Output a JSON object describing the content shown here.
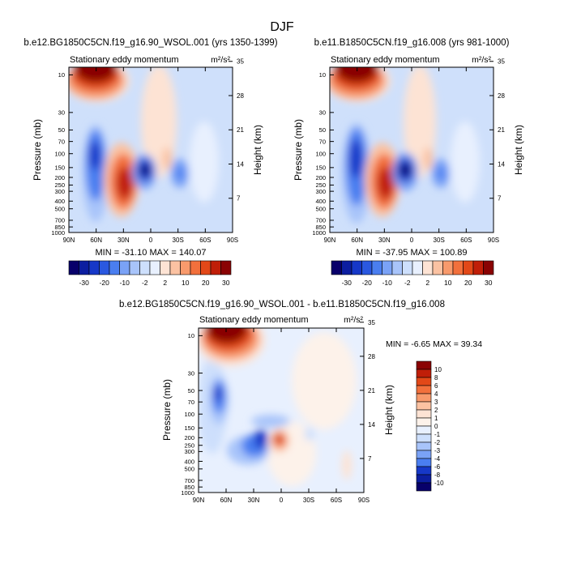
{
  "page_title": "DJF",
  "chart_data": [
    {
      "type": "heatmap",
      "id": "panel1",
      "title": "b.e12.BG1850C5CN.f19_g16.90_WSOL.001 (yrs 1350-1399)",
      "subtitle": "Stationary eddy momentum",
      "units": "m²/s²",
      "xlabel": "",
      "ylabel": "Pressure (mb)",
      "ylabel_right": "Height (km)",
      "x_ticks": [
        "90N",
        "60N",
        "30N",
        "0",
        "30S",
        "60S",
        "90S"
      ],
      "y_ticks": [
        "10",
        "30",
        "50",
        "70",
        "100",
        "150",
        "200",
        "250",
        "300",
        "400",
        "500",
        "700",
        "850",
        "1000"
      ],
      "y_ticks_right": [
        "35",
        "28",
        "21",
        "14",
        "7"
      ],
      "min_max_label": "MIN = -31.10   MAX = 140.07",
      "stats": {
        "min": -31.1,
        "max": 140.07
      },
      "colorbar": {
        "labels": [
          "-30",
          "-20",
          "-10",
          "-2",
          "2",
          "10",
          "20",
          "30"
        ],
        "colors": [
          "#08006a",
          "#0c1ea0",
          "#1638c8",
          "#2a58e0",
          "#4a7ef0",
          "#7aa2f6",
          "#a8c4fa",
          "#cddffc",
          "#e8f0fe",
          "#fde3d4",
          "#fbc2a2",
          "#f89a6c",
          "#f2703c",
          "#e24818",
          "#c01e08",
          "#8a0303"
        ]
      },
      "features": [
        {
          "lat": 62,
          "z": 37,
          "value": 140,
          "kind": "high-latitude stratospheric maximum"
        },
        {
          "lat": 73,
          "z": 17,
          "value": -20,
          "kind": "high-latitude negative lobe"
        },
        {
          "lat": 30,
          "z": 11,
          "value": 30,
          "kind": "subtropical positive core"
        },
        {
          "lat": 10,
          "z": 14.5,
          "value": -31.1,
          "kind": "tropical negative core"
        },
        {
          "lat": -30,
          "z": 14,
          "value": -10,
          "kind": "southern subtropical negative"
        }
      ]
    },
    {
      "type": "heatmap",
      "id": "panel2",
      "title": "b.e11.B1850C5CN.f19_g16.008 (yrs 981-1000)",
      "subtitle": "Stationary eddy momentum",
      "units": "m²/s²",
      "xlabel": "",
      "ylabel": "Pressure (mb)",
      "ylabel_right": "Height (km)",
      "x_ticks": [
        "90N",
        "60N",
        "30N",
        "0",
        "30S",
        "60S",
        "90S"
      ],
      "y_ticks": [
        "10",
        "30",
        "50",
        "70",
        "100",
        "150",
        "200",
        "250",
        "300",
        "400",
        "500",
        "700",
        "850",
        "1000"
      ],
      "y_ticks_right": [
        "35",
        "28",
        "21",
        "14",
        "7"
      ],
      "min_max_label": "MIN = -37.95   MAX = 100.89",
      "stats": {
        "min": -37.95,
        "max": 100.89
      },
      "colorbar": {
        "labels": [
          "-30",
          "-20",
          "-10",
          "-2",
          "2",
          "10",
          "20",
          "30"
        ],
        "colors": [
          "#08006a",
          "#0c1ea0",
          "#1638c8",
          "#2a58e0",
          "#4a7ef0",
          "#7aa2f6",
          "#a8c4fa",
          "#cddffc",
          "#e8f0fe",
          "#fde3d4",
          "#fbc2a2",
          "#f89a6c",
          "#f2703c",
          "#e24818",
          "#c01e08",
          "#8a0303"
        ]
      },
      "features": [
        {
          "lat": 62,
          "z": 37,
          "value": 100.9,
          "kind": "high-latitude stratospheric maximum"
        },
        {
          "lat": 74,
          "z": 16,
          "value": -25,
          "kind": "high-latitude negative lobe"
        },
        {
          "lat": 30,
          "z": 11,
          "value": 30,
          "kind": "subtropical positive core"
        },
        {
          "lat": 10,
          "z": 14.5,
          "value": -37.95,
          "kind": "tropical negative core"
        },
        {
          "lat": -28,
          "z": 12,
          "value": -10,
          "kind": "southern subtropical negative"
        }
      ]
    },
    {
      "type": "heatmap",
      "id": "panel3",
      "title": "b.e12.BG1850C5CN.f19_g16.90_WSOL.001 - b.e11.B1850C5CN.f19_g16.008",
      "subtitle": "Stationary eddy momentum",
      "units": "m²/s²",
      "xlabel": "",
      "ylabel": "Pressure (mb)",
      "ylabel_right": "Height (km)",
      "x_ticks": [
        "90N",
        "60N",
        "30N",
        "0",
        "30S",
        "60S",
        "90S"
      ],
      "y_ticks": [
        "10",
        "30",
        "50",
        "70",
        "100",
        "150",
        "200",
        "250",
        "300",
        "400",
        "500",
        "700",
        "850",
        "1000"
      ],
      "y_ticks_right": [
        "35",
        "28",
        "21",
        "14",
        "7"
      ],
      "min_max_label": "MIN = -6.65   MAX = 39.34",
      "stats": {
        "min": -6.65,
        "max": 39.34
      },
      "colorbar": {
        "labels": [
          "10",
          "8",
          "6",
          "4",
          "3",
          "2",
          "1",
          "0",
          "-1",
          "-2",
          "-3",
          "-4",
          "-6",
          "-8",
          "-10"
        ],
        "colors": [
          "#8a0303",
          "#c01e08",
          "#e24818",
          "#f2703c",
          "#f89a6c",
          "#fbc2a2",
          "#fde3d4",
          "#fdf2ea",
          "#e8f0fe",
          "#cddffc",
          "#a8c4fa",
          "#7aa2f6",
          "#4a7ef0",
          "#1638c8",
          "#0c1ea0",
          "#08006a"
        ]
      },
      "features": [
        {
          "lat": 58,
          "z": 37,
          "value": 39.3,
          "kind": "high-latitude stratospheric maximum"
        },
        {
          "lat": 68,
          "z": 21,
          "value": -5,
          "kind": "high-latitude negative"
        },
        {
          "lat": 18,
          "z": 13,
          "value": -6.65,
          "kind": "tropical negative"
        },
        {
          "lat": 0,
          "z": 13,
          "value": 8,
          "kind": "equatorial positive core"
        },
        {
          "lat": 32,
          "z": 8,
          "value": -4,
          "kind": "lower-tropospheric negative"
        }
      ]
    }
  ]
}
